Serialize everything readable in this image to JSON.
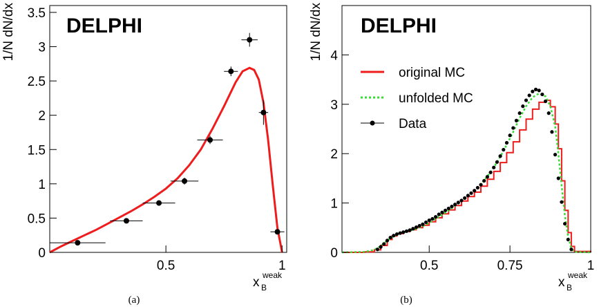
{
  "chart_data": [
    {
      "type": "scatter",
      "panel": "(a)",
      "experiment_label": "DELPHI",
      "ylabel": "1/N dN/dx",
      "xlabel_main": "x",
      "xlabel_sub": "B",
      "xlabel_sup": "weak",
      "xlim": [
        0.0,
        1.02
      ],
      "ylim": [
        0,
        3.6
      ],
      "x_ticks": [
        {
          "v": 0.5,
          "label": "0.5"
        },
        {
          "v": 1.0,
          "label": "1"
        }
      ],
      "y_ticks": [
        {
          "v": 0,
          "label": "0"
        },
        {
          "v": 0.5,
          "label": "0.5"
        },
        {
          "v": 1,
          "label": "1"
        },
        {
          "v": 1.5,
          "label": "1.5"
        },
        {
          "v": 2,
          "label": "2"
        },
        {
          "v": 2.5,
          "label": "2.5"
        },
        {
          "v": 3,
          "label": "3"
        },
        {
          "v": 3.5,
          "label": "3.5"
        }
      ],
      "data_points": [
        {
          "x": 0.12,
          "y": 0.14,
          "xerr": 0.12,
          "yerr": 0.02
        },
        {
          "x": 0.33,
          "y": 0.46,
          "xerr": 0.07,
          "yerr": 0.03
        },
        {
          "x": 0.47,
          "y": 0.72,
          "xerr": 0.07,
          "yerr": 0.04
        },
        {
          "x": 0.58,
          "y": 1.04,
          "xerr": 0.06,
          "yerr": 0.05
        },
        {
          "x": 0.69,
          "y": 1.64,
          "xerr": 0.055,
          "yerr": 0.06
        },
        {
          "x": 0.78,
          "y": 2.64,
          "xerr": 0.03,
          "yerr": 0.07
        },
        {
          "x": 0.86,
          "y": 3.1,
          "xerr": 0.035,
          "yerr": 0.1
        },
        {
          "x": 0.92,
          "y": 2.04,
          "xerr": 0.02,
          "yerr": 0.18
        },
        {
          "x": 0.98,
          "y": 0.3,
          "xerr": 0.03,
          "yerr": 0.03
        }
      ],
      "fit_curve": {
        "name": "fit",
        "color": "#ee1c1c",
        "x": [
          0.0,
          0.05,
          0.1,
          0.15,
          0.2,
          0.25,
          0.3,
          0.35,
          0.4,
          0.45,
          0.5,
          0.55,
          0.6,
          0.65,
          0.7,
          0.75,
          0.8,
          0.83,
          0.86,
          0.88,
          0.9,
          0.92,
          0.94,
          0.96,
          0.98,
          1.0
        ],
        "y": [
          0.0,
          0.09,
          0.17,
          0.25,
          0.33,
          0.42,
          0.51,
          0.6,
          0.7,
          0.81,
          0.93,
          1.08,
          1.27,
          1.5,
          1.8,
          2.13,
          2.48,
          2.64,
          2.69,
          2.66,
          2.52,
          2.18,
          1.64,
          0.98,
          0.36,
          0.0
        ]
      }
    },
    {
      "type": "line",
      "panel": "(b)",
      "experiment_label": "DELPHI",
      "ylabel": "1/N dN/dx",
      "xlabel_main": "x",
      "xlabel_sub": "B",
      "xlabel_sup": "weak",
      "xlim": [
        0.23,
        1.0
      ],
      "ylim": [
        0,
        5.0
      ],
      "x_ticks": [
        {
          "v": 0.5,
          "label": "0.5"
        },
        {
          "v": 0.75,
          "label": "0.75"
        },
        {
          "v": 1.0,
          "label": "1"
        }
      ],
      "y_ticks": [
        {
          "v": 0,
          "label": "0"
        },
        {
          "v": 1,
          "label": "1"
        },
        {
          "v": 2,
          "label": "2"
        },
        {
          "v": 3,
          "label": "3"
        },
        {
          "v": 4,
          "label": "4"
        }
      ],
      "legend": [
        {
          "label": "original MC",
          "style": "solid",
          "color": "#ee1c1c"
        },
        {
          "label": "unfolded MC",
          "style": "dotted",
          "color": "#33dd33"
        },
        {
          "label": "Data",
          "style": "marker",
          "color": "#000000"
        }
      ],
      "series": [
        {
          "name": "original MC",
          "style": "step",
          "color": "#ee1c1c",
          "x": [
            0.23,
            0.3,
            0.33,
            0.35,
            0.37,
            0.385,
            0.4,
            0.42,
            0.44,
            0.46,
            0.48,
            0.5,
            0.52,
            0.54,
            0.56,
            0.58,
            0.6,
            0.62,
            0.64,
            0.66,
            0.68,
            0.7,
            0.72,
            0.74,
            0.76,
            0.78,
            0.8,
            0.82,
            0.84,
            0.86,
            0.875,
            0.89,
            0.9,
            0.91,
            0.92,
            0.93,
            0.94,
            0.95,
            1.0
          ],
          "y": [
            0.0,
            0.01,
            0.05,
            0.14,
            0.26,
            0.33,
            0.38,
            0.42,
            0.46,
            0.5,
            0.55,
            0.62,
            0.7,
            0.78,
            0.86,
            0.95,
            1.04,
            1.13,
            1.22,
            1.34,
            1.48,
            1.64,
            1.82,
            2.02,
            2.24,
            2.48,
            2.7,
            2.9,
            3.04,
            3.08,
            2.95,
            2.6,
            2.1,
            1.45,
            0.85,
            0.4,
            0.12,
            0.02,
            0.0
          ]
        },
        {
          "name": "unfolded MC",
          "style": "dotted",
          "color": "#33dd33",
          "x": [
            0.23,
            0.3,
            0.33,
            0.35,
            0.37,
            0.385,
            0.4,
            0.42,
            0.44,
            0.46,
            0.48,
            0.5,
            0.52,
            0.54,
            0.56,
            0.58,
            0.6,
            0.62,
            0.64,
            0.66,
            0.68,
            0.7,
            0.72,
            0.74,
            0.76,
            0.78,
            0.8,
            0.82,
            0.84,
            0.86,
            0.875,
            0.89,
            0.9,
            0.91,
            0.92,
            0.93,
            0.94,
            0.95,
            1.0
          ],
          "y": [
            0.0,
            0.01,
            0.05,
            0.13,
            0.24,
            0.31,
            0.36,
            0.4,
            0.44,
            0.48,
            0.53,
            0.6,
            0.68,
            0.76,
            0.85,
            0.94,
            1.04,
            1.14,
            1.25,
            1.38,
            1.54,
            1.72,
            1.94,
            2.18,
            2.44,
            2.72,
            2.96,
            3.14,
            3.22,
            3.16,
            2.96,
            2.55,
            2.0,
            1.35,
            0.75,
            0.32,
            0.08,
            0.01,
            0.0
          ]
        },
        {
          "name": "Data",
          "style": "markers",
          "color": "#000000",
          "x": [
            0.34,
            0.35,
            0.36,
            0.37,
            0.38,
            0.39,
            0.4,
            0.41,
            0.42,
            0.43,
            0.44,
            0.45,
            0.46,
            0.47,
            0.48,
            0.49,
            0.5,
            0.51,
            0.52,
            0.53,
            0.54,
            0.55,
            0.56,
            0.57,
            0.58,
            0.59,
            0.6,
            0.61,
            0.62,
            0.63,
            0.64,
            0.65,
            0.66,
            0.67,
            0.68,
            0.69,
            0.7,
            0.71,
            0.72,
            0.73,
            0.74,
            0.75,
            0.76,
            0.77,
            0.78,
            0.79,
            0.8,
            0.81,
            0.82,
            0.83,
            0.84,
            0.85,
            0.86,
            0.87,
            0.88,
            0.89,
            0.9,
            0.91,
            0.92,
            0.93,
            0.94
          ],
          "y": [
            0.06,
            0.11,
            0.17,
            0.24,
            0.3,
            0.34,
            0.37,
            0.39,
            0.41,
            0.43,
            0.45,
            0.48,
            0.51,
            0.54,
            0.57,
            0.61,
            0.65,
            0.68,
            0.72,
            0.77,
            0.81,
            0.85,
            0.89,
            0.93,
            0.97,
            1.01,
            1.05,
            1.1,
            1.15,
            1.2,
            1.25,
            1.31,
            1.37,
            1.45,
            1.53,
            1.62,
            1.72,
            1.83,
            1.95,
            2.08,
            2.22,
            2.37,
            2.52,
            2.67,
            2.82,
            2.96,
            3.08,
            3.18,
            3.26,
            3.3,
            3.28,
            3.2,
            3.06,
            2.82,
            2.44,
            1.98,
            1.5,
            1.02,
            0.58,
            0.26,
            0.06
          ]
        }
      ]
    }
  ]
}
